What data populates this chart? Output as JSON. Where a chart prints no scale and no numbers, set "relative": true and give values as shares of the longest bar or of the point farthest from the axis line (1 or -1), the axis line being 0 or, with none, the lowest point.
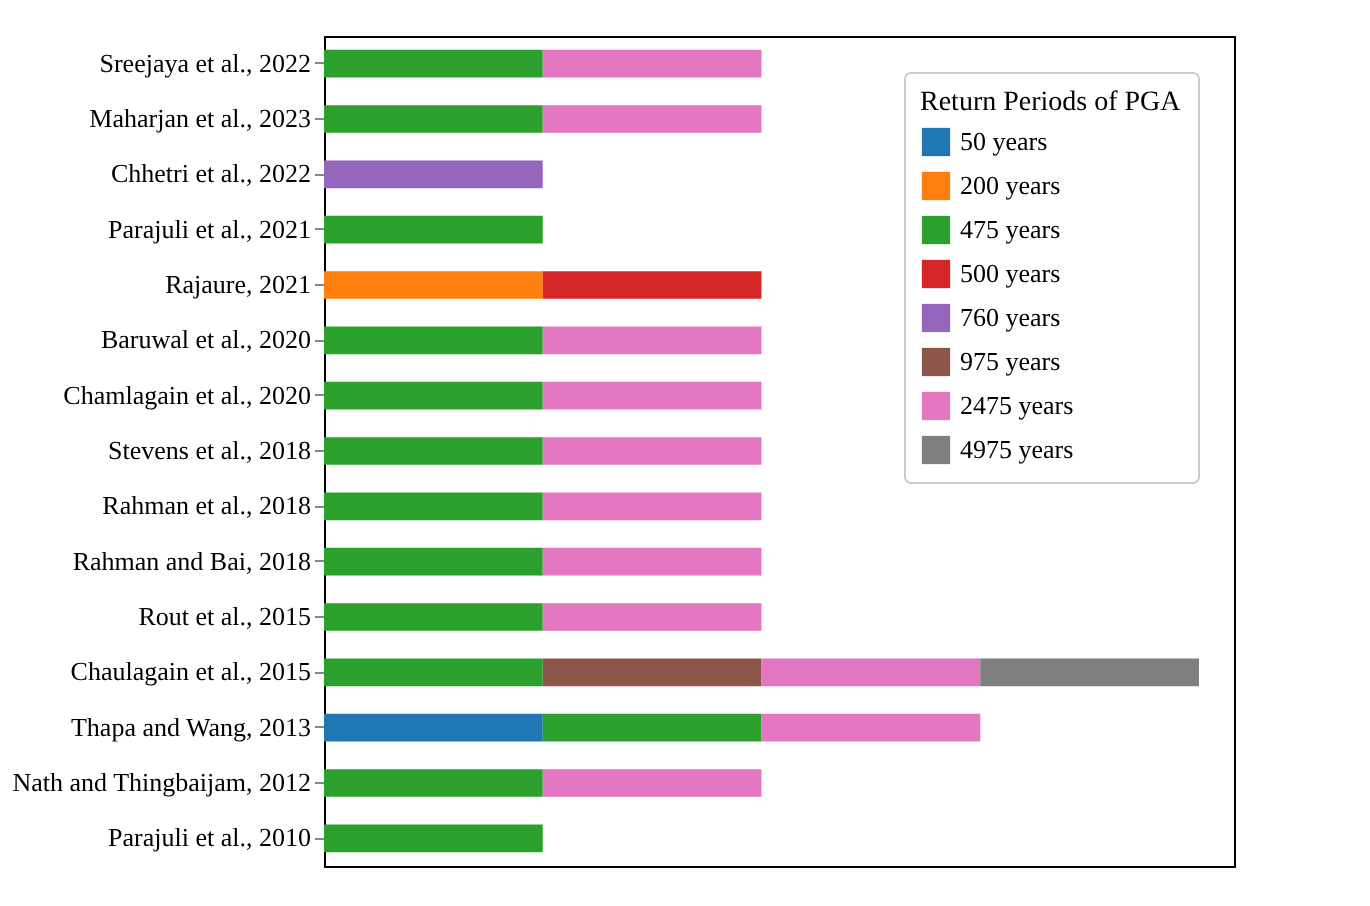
{
  "chart_data": {
    "type": "bar",
    "orientation": "horizontal",
    "stacked": true,
    "relative": true,
    "legend_title": "Return Periods of PGA",
    "legend": "top right",
    "grid": false,
    "categories": [
      "Sreejaya et al., 2022",
      "Maharjan et al., 2023",
      "Chhetri et al., 2022",
      "Parajuli et al., 2021",
      "Rajaure, 2021",
      "Baruwal et al., 2020",
      "Chamlagain et al., 2020",
      "Stevens et al., 2018",
      "Rahman et al., 2018",
      "Rahman and Bai, 2018",
      "Rout et al., 2015",
      "Chaulagain et al., 2015",
      "Thapa and Wang, 2013",
      "Nath and Thingbaijam, 2012",
      "Parajuli et al., 2010"
    ],
    "series": [
      {
        "name": "50 years",
        "color": "#1f77b4",
        "values": [
          null,
          null,
          null,
          null,
          null,
          null,
          null,
          null,
          null,
          null,
          null,
          null,
          0.25,
          null,
          null
        ]
      },
      {
        "name": "200 years",
        "color": "#ff7f0e",
        "values": [
          null,
          null,
          null,
          null,
          0.25,
          null,
          null,
          null,
          null,
          null,
          null,
          null,
          null,
          null,
          null
        ]
      },
      {
        "name": "475 years",
        "color": "#2ca02c",
        "values": [
          0.25,
          0.25,
          null,
          0.25,
          null,
          0.25,
          0.25,
          0.25,
          0.25,
          0.25,
          0.25,
          0.25,
          0.25,
          0.25,
          0.25
        ]
      },
      {
        "name": "500 years",
        "color": "#d62728",
        "values": [
          null,
          null,
          null,
          null,
          0.25,
          null,
          null,
          null,
          null,
          null,
          null,
          null,
          null,
          null,
          null
        ]
      },
      {
        "name": "760 years",
        "color": "#9467bd",
        "values": [
          null,
          null,
          0.25,
          null,
          null,
          null,
          null,
          null,
          null,
          null,
          null,
          null,
          null,
          null,
          null
        ]
      },
      {
        "name": "975 years",
        "color": "#8c564b",
        "values": [
          null,
          null,
          null,
          null,
          null,
          null,
          null,
          null,
          null,
          null,
          null,
          0.25,
          null,
          null,
          null
        ]
      },
      {
        "name": "2475 years",
        "color": "#e377c2",
        "values": [
          0.25,
          0.25,
          null,
          null,
          null,
          0.25,
          0.25,
          0.25,
          0.25,
          0.25,
          0.25,
          0.25,
          0.25,
          0.25,
          null
        ]
      },
      {
        "name": "4975 years",
        "color": "#7f7f7f",
        "values": [
          null,
          null,
          null,
          null,
          null,
          null,
          null,
          null,
          null,
          null,
          null,
          0.25,
          null,
          null,
          null
        ]
      }
    ]
  }
}
